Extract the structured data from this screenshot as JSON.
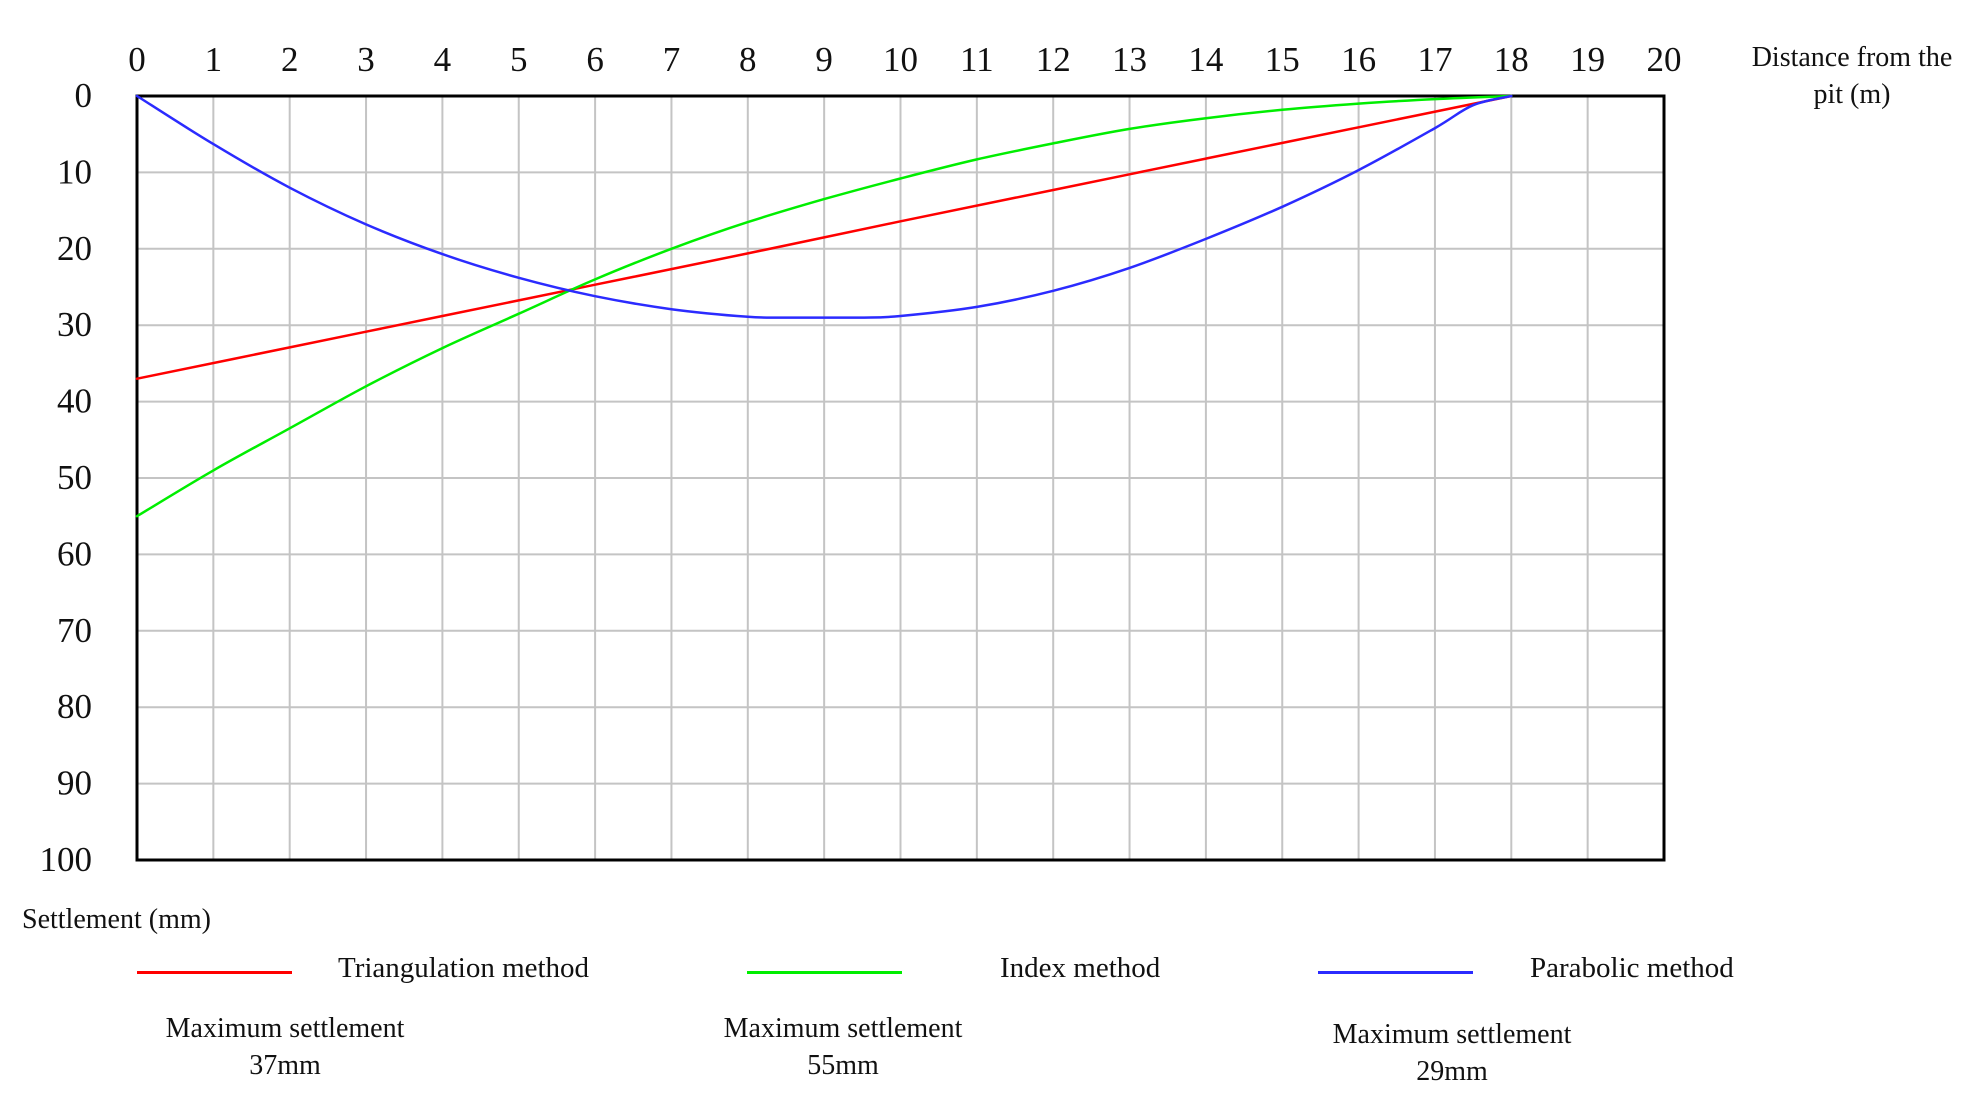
{
  "chart_data": {
    "type": "line",
    "xlabel": "Distance from the pit (m)",
    "xlabel_lines": [
      "Distance from the",
      "pit (m)"
    ],
    "ylabel": "Settlement (mm)",
    "xlim": [
      0,
      20
    ],
    "ylim": [
      0,
      100
    ],
    "y_inverted": true,
    "x_position": "top",
    "x_ticks": [
      0,
      1,
      2,
      3,
      4,
      5,
      6,
      7,
      8,
      9,
      10,
      11,
      12,
      13,
      14,
      15,
      16,
      17,
      18,
      19,
      20
    ],
    "y_ticks": [
      0,
      10,
      20,
      30,
      40,
      50,
      60,
      70,
      80,
      90,
      100
    ],
    "grid": true,
    "legend_position": "bottom",
    "series": [
      {
        "name": "Triangulation method",
        "color": "#ff0000",
        "x": [
          0,
          2,
          4,
          6,
          8,
          10,
          12,
          14,
          16,
          18
        ],
        "y": [
          37,
          32.9,
          28.8,
          24.7,
          20.6,
          16.4,
          12.3,
          8.2,
          4.1,
          0
        ]
      },
      {
        "name": "Index method",
        "color": "#00ee00",
        "x": [
          0,
          1,
          2,
          3,
          4,
          5,
          6,
          7,
          8,
          9,
          10,
          11,
          12,
          13,
          14,
          15,
          16,
          17,
          18
        ],
        "y": [
          55,
          49,
          43.5,
          38,
          33,
          28.5,
          24,
          20,
          16.5,
          13.5,
          10.8,
          8.3,
          6.2,
          4.3,
          2.9,
          1.8,
          1,
          0.4,
          0
        ]
      },
      {
        "name": "Parabolic method",
        "color": "#2b2bff",
        "x": [
          0,
          1,
          2,
          3,
          4,
          5,
          6,
          7,
          8,
          8.5,
          9,
          9.5,
          10,
          11,
          12,
          13,
          14,
          15,
          16,
          17,
          17.5,
          18
        ],
        "y": [
          0,
          6.3,
          12,
          16.8,
          20.7,
          23.8,
          26.2,
          27.9,
          28.9,
          29,
          29,
          29,
          28.8,
          27.6,
          25.5,
          22.5,
          18.7,
          14.5,
          9.7,
          4.2,
          1.2,
          0
        ]
      }
    ],
    "annotations": [
      {
        "series": "Triangulation method",
        "label": "Maximum settlement",
        "value": "37mm"
      },
      {
        "series": "Index method",
        "label": "Maximum settlement",
        "value": "55mm"
      },
      {
        "series": "Parabolic method",
        "label": "Maximum settlement",
        "value": "29mm"
      }
    ]
  }
}
